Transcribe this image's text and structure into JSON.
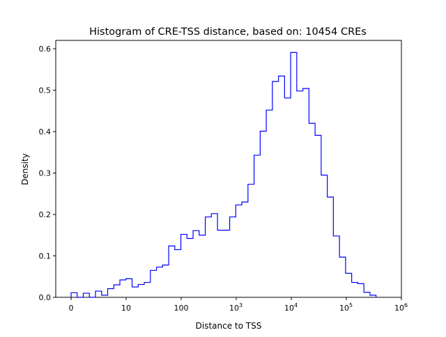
{
  "chart_data": {
    "type": "histogram",
    "title": "Histogram of CRE-TSS distance, based on: 10454 CREs",
    "xlabel": "Distance to TSS",
    "ylabel": "Density",
    "x_scale": "log",
    "x_ticks": [
      {
        "value": 0,
        "base": "0",
        "exp": ""
      },
      {
        "value": 10,
        "base": "10",
        "exp": ""
      },
      {
        "value": 100,
        "base": "100",
        "exp": ""
      },
      {
        "value": 1000,
        "base": "10",
        "exp": "3"
      },
      {
        "value": 10000,
        "base": "10",
        "exp": "4"
      },
      {
        "value": 100000,
        "base": "10",
        "exp": "5"
      },
      {
        "value": 1000000,
        "base": "10",
        "exp": "6"
      }
    ],
    "y_ticks": [
      "0.0",
      "0.1",
      "0.2",
      "0.3",
      "0.4",
      "0.5",
      "0.6"
    ],
    "ylim": [
      0,
      0.62
    ],
    "histtype": "step",
    "color": "#0000ff",
    "bin_range_log10": [
      0,
      5.54
    ],
    "densities": [
      0.011,
      0.0,
      0.01,
      0.0,
      0.015,
      0.005,
      0.021,
      0.03,
      0.042,
      0.045,
      0.025,
      0.031,
      0.036,
      0.065,
      0.073,
      0.078,
      0.124,
      0.115,
      0.152,
      0.142,
      0.161,
      0.15,
      0.194,
      0.202,
      0.162,
      0.162,
      0.194,
      0.223,
      0.23,
      0.273,
      0.343,
      0.401,
      0.452,
      0.521,
      0.534,
      0.481,
      0.591,
      0.498,
      0.504,
      0.42,
      0.391,
      0.295,
      0.242,
      0.148,
      0.097,
      0.058,
      0.036,
      0.033,
      0.012,
      0.005
    ]
  }
}
